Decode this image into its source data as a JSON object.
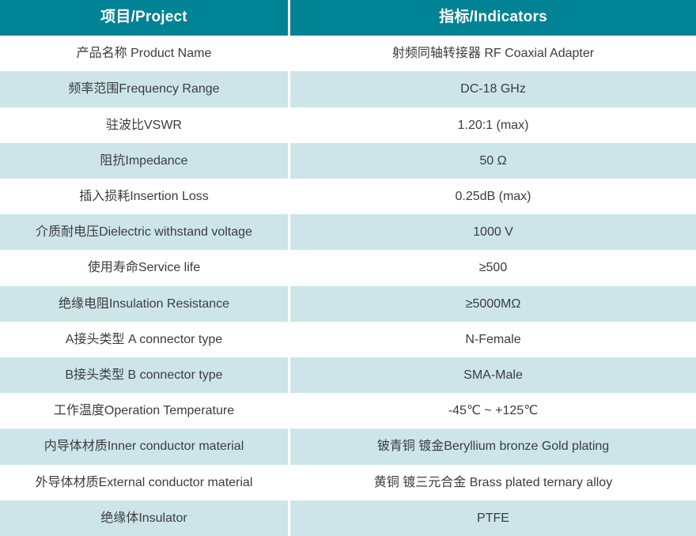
{
  "colors": {
    "header_bg": "#008394",
    "header_text": "#ffffff",
    "row_bg": "#ffffff",
    "row_alt_bg": "#cde5e9",
    "text": "#3c3c3c",
    "divider": "#ffffff"
  },
  "table": {
    "headers": {
      "project": "项目/Project",
      "indicators": "指标/Indicators"
    },
    "rows": [
      {
        "label": "产品名称 Product Name",
        "value": "射频同轴转接器  RF Coaxial Adapter"
      },
      {
        "label": "频率范围Frequency Range",
        "value": "DC-18 GHz"
      },
      {
        "label": "驻波比VSWR",
        "value": "1.20:1 (max)"
      },
      {
        "label": "阻抗Impedance",
        "value": "50 Ω"
      },
      {
        "label": "插入损耗Insertion Loss",
        "value": "0.25dB (max)"
      },
      {
        "label": "介质耐电压Dielectric withstand voltage",
        "value": "1000 V"
      },
      {
        "label": "使用寿命Service life",
        "value": "≥500"
      },
      {
        "label": "绝缘电阻Insulation Resistance",
        "value": "≥5000MΩ"
      },
      {
        "label": "A接头类型 A connector type",
        "value": "N-Female"
      },
      {
        "label": "B接头类型 B connector type",
        "value": "SMA-Male"
      },
      {
        "label": "工作温度Operation Temperature",
        "value": "-45℃ ~ +125℃"
      },
      {
        "label": "内导体材质Inner conductor material",
        "value": "铍青铜 镀金Beryllium bronze Gold plating"
      },
      {
        "label": "外导体材质External conductor material",
        "value": "黄铜 镀三元合金 Brass plated ternary alloy"
      },
      {
        "label": "绝缘体Insulator",
        "value": "PTFE"
      }
    ]
  }
}
